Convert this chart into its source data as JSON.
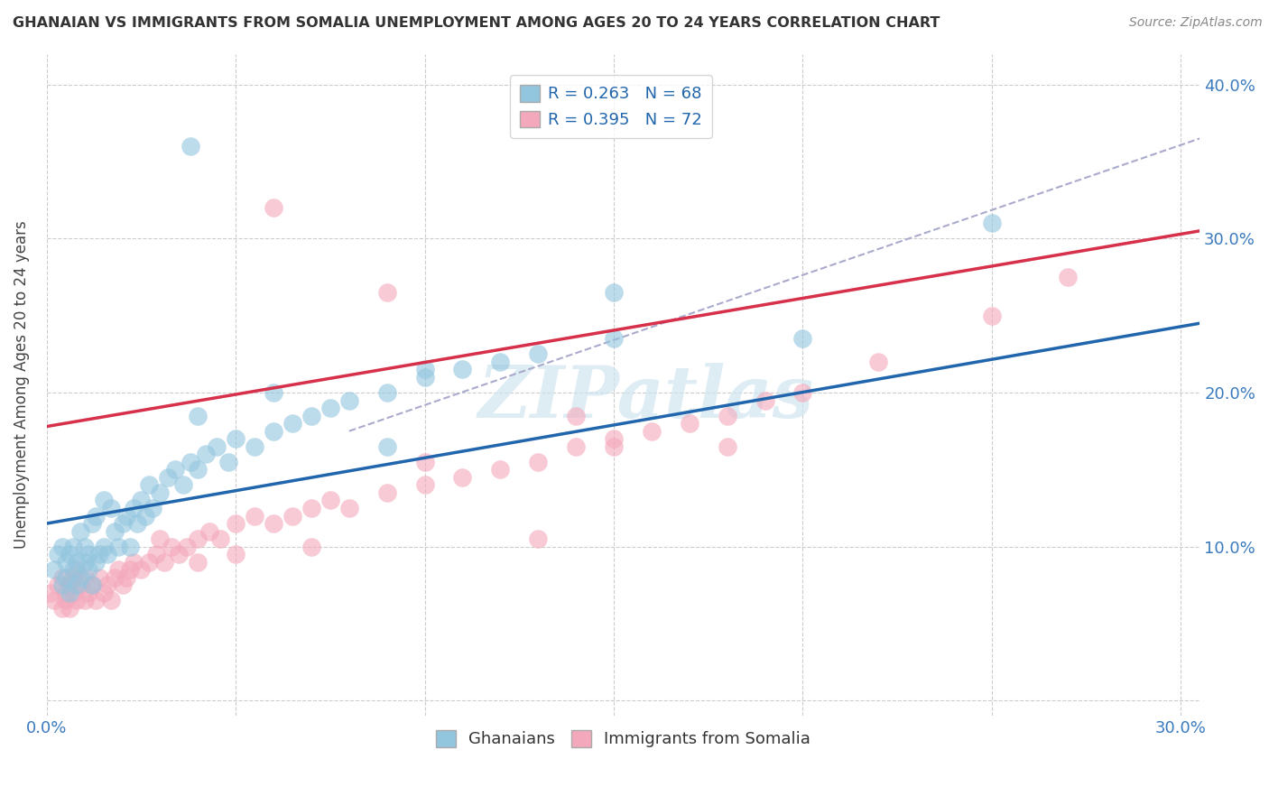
{
  "title": "GHANAIAN VS IMMIGRANTS FROM SOMALIA UNEMPLOYMENT AMONG AGES 20 TO 24 YEARS CORRELATION CHART",
  "source": "Source: ZipAtlas.com",
  "ylabel": "Unemployment Among Ages 20 to 24 years",
  "legend_label1": "Ghanaians",
  "legend_label2": "Immigrants from Somalia",
  "R1": 0.263,
  "N1": 68,
  "R2": 0.395,
  "N2": 72,
  "xlim": [
    0.0,
    0.305
  ],
  "ylim": [
    -0.01,
    0.42
  ],
  "color_blue": "#92c5de",
  "color_pink": "#f4a8bb",
  "line_blue": "#2166ac",
  "line_pink": "#d6304a",
  "line_gray": "#aaaacc",
  "watermark": "ZIPatlas",
  "background": "#ffffff",
  "blue_line": [
    0.0,
    0.115,
    0.305,
    0.245
  ],
  "pink_line": [
    0.0,
    0.178,
    0.305,
    0.305
  ],
  "gray_line": [
    0.08,
    0.175,
    0.305,
    0.365
  ],
  "blue_x": [
    0.002,
    0.003,
    0.004,
    0.004,
    0.005,
    0.005,
    0.006,
    0.006,
    0.007,
    0.007,
    0.008,
    0.008,
    0.009,
    0.009,
    0.01,
    0.01,
    0.011,
    0.011,
    0.012,
    0.012,
    0.013,
    0.013,
    0.014,
    0.015,
    0.015,
    0.016,
    0.017,
    0.018,
    0.019,
    0.02,
    0.021,
    0.022,
    0.023,
    0.024,
    0.025,
    0.026,
    0.027,
    0.028,
    0.03,
    0.032,
    0.034,
    0.036,
    0.038,
    0.04,
    0.042,
    0.045,
    0.048,
    0.05,
    0.055,
    0.06,
    0.065,
    0.07,
    0.075,
    0.08,
    0.09,
    0.1,
    0.11,
    0.12,
    0.13,
    0.15,
    0.038,
    0.1,
    0.15,
    0.2,
    0.25,
    0.09,
    0.06,
    0.04
  ],
  "blue_y": [
    0.085,
    0.095,
    0.1,
    0.075,
    0.09,
    0.08,
    0.095,
    0.07,
    0.1,
    0.085,
    0.09,
    0.075,
    0.11,
    0.08,
    0.1,
    0.09,
    0.095,
    0.085,
    0.115,
    0.075,
    0.12,
    0.09,
    0.095,
    0.1,
    0.13,
    0.095,
    0.125,
    0.11,
    0.1,
    0.115,
    0.12,
    0.1,
    0.125,
    0.115,
    0.13,
    0.12,
    0.14,
    0.125,
    0.135,
    0.145,
    0.15,
    0.14,
    0.155,
    0.15,
    0.16,
    0.165,
    0.155,
    0.17,
    0.165,
    0.175,
    0.18,
    0.185,
    0.19,
    0.195,
    0.2,
    0.21,
    0.215,
    0.22,
    0.225,
    0.235,
    0.36,
    0.215,
    0.265,
    0.235,
    0.31,
    0.165,
    0.2,
    0.185
  ],
  "pink_x": [
    0.001,
    0.002,
    0.003,
    0.004,
    0.004,
    0.005,
    0.005,
    0.006,
    0.006,
    0.007,
    0.007,
    0.008,
    0.008,
    0.009,
    0.01,
    0.01,
    0.011,
    0.012,
    0.013,
    0.014,
    0.015,
    0.016,
    0.017,
    0.018,
    0.019,
    0.02,
    0.021,
    0.022,
    0.023,
    0.025,
    0.027,
    0.029,
    0.031,
    0.033,
    0.035,
    0.037,
    0.04,
    0.043,
    0.046,
    0.05,
    0.055,
    0.06,
    0.065,
    0.07,
    0.075,
    0.08,
    0.09,
    0.1,
    0.11,
    0.12,
    0.13,
    0.14,
    0.15,
    0.16,
    0.17,
    0.18,
    0.19,
    0.2,
    0.22,
    0.25,
    0.06,
    0.09,
    0.14,
    0.27,
    0.15,
    0.1,
    0.18,
    0.13,
    0.07,
    0.05,
    0.04,
    0.03
  ],
  "pink_y": [
    0.07,
    0.065,
    0.075,
    0.06,
    0.08,
    0.07,
    0.065,
    0.075,
    0.06,
    0.08,
    0.07,
    0.065,
    0.085,
    0.075,
    0.065,
    0.08,
    0.07,
    0.075,
    0.065,
    0.08,
    0.07,
    0.075,
    0.065,
    0.08,
    0.085,
    0.075,
    0.08,
    0.085,
    0.09,
    0.085,
    0.09,
    0.095,
    0.09,
    0.1,
    0.095,
    0.1,
    0.105,
    0.11,
    0.105,
    0.115,
    0.12,
    0.115,
    0.12,
    0.125,
    0.13,
    0.125,
    0.135,
    0.14,
    0.145,
    0.15,
    0.155,
    0.165,
    0.17,
    0.175,
    0.18,
    0.185,
    0.195,
    0.2,
    0.22,
    0.25,
    0.32,
    0.265,
    0.185,
    0.275,
    0.165,
    0.155,
    0.165,
    0.105,
    0.1,
    0.095,
    0.09,
    0.105
  ]
}
